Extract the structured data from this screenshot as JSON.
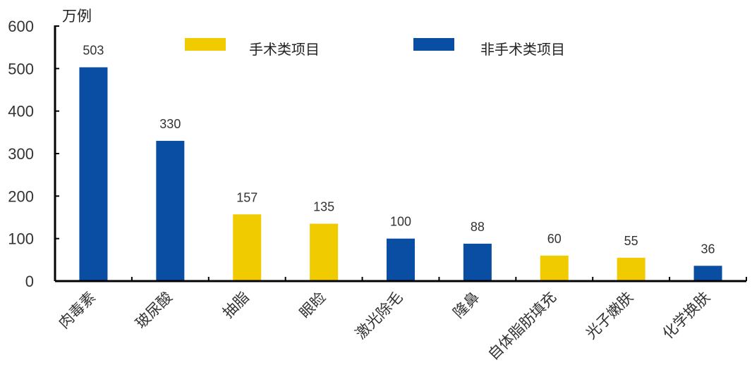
{
  "chart_data": {
    "type": "bar",
    "unit": "万例",
    "categories": [
      "肉毒素",
      "玻尿酸",
      "抽脂",
      "眼睑",
      "激光除毛",
      "隆鼻",
      "自体脂肪填充",
      "光子嫩肤",
      "化学换肤"
    ],
    "values": [
      503,
      330,
      157,
      135,
      100,
      88,
      60,
      55,
      36
    ],
    "value_labels": [
      "503",
      "330",
      "157",
      "135",
      "100",
      "88",
      "60",
      "55",
      "36"
    ],
    "series_by_category": [
      "非手术类项目",
      "非手术类项目",
      "手术类项目",
      "手术类项目",
      "非手术类项目",
      "非手术类项目",
      "手术类项目",
      "手术类项目",
      "非手术类项目"
    ],
    "legend": [
      {
        "name": "手术类项目",
        "color": "#F0CB00"
      },
      {
        "name": "非手术类项目",
        "color": "#0A4EA3"
      }
    ],
    "legend_position": "top",
    "ylim": [
      0,
      600
    ],
    "yticks": [
      0,
      100,
      200,
      300,
      400,
      500,
      600
    ],
    "ytick_labels": [
      "0",
      "100",
      "200",
      "300",
      "400",
      "500",
      "600"
    ],
    "grid": false
  }
}
